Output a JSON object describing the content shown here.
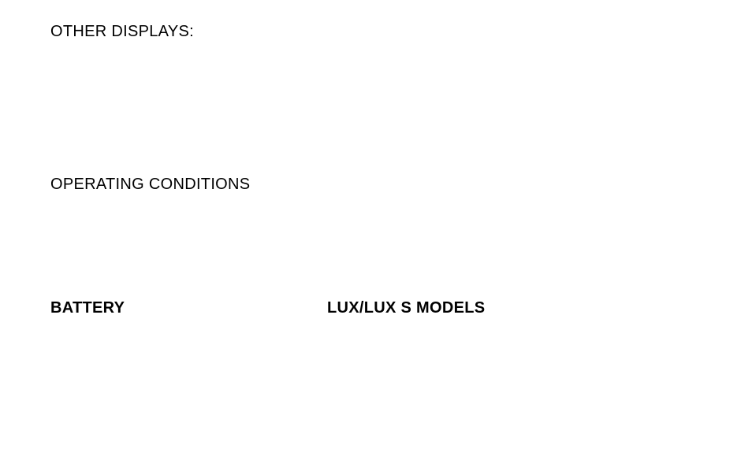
{
  "headings": {
    "other_displays": "OTHER DISPLAYS:",
    "operating_conditions": "OPERATING CONDITIONS",
    "battery": "BATTERY",
    "lux_models": "LUX/LUX S MODELS"
  }
}
